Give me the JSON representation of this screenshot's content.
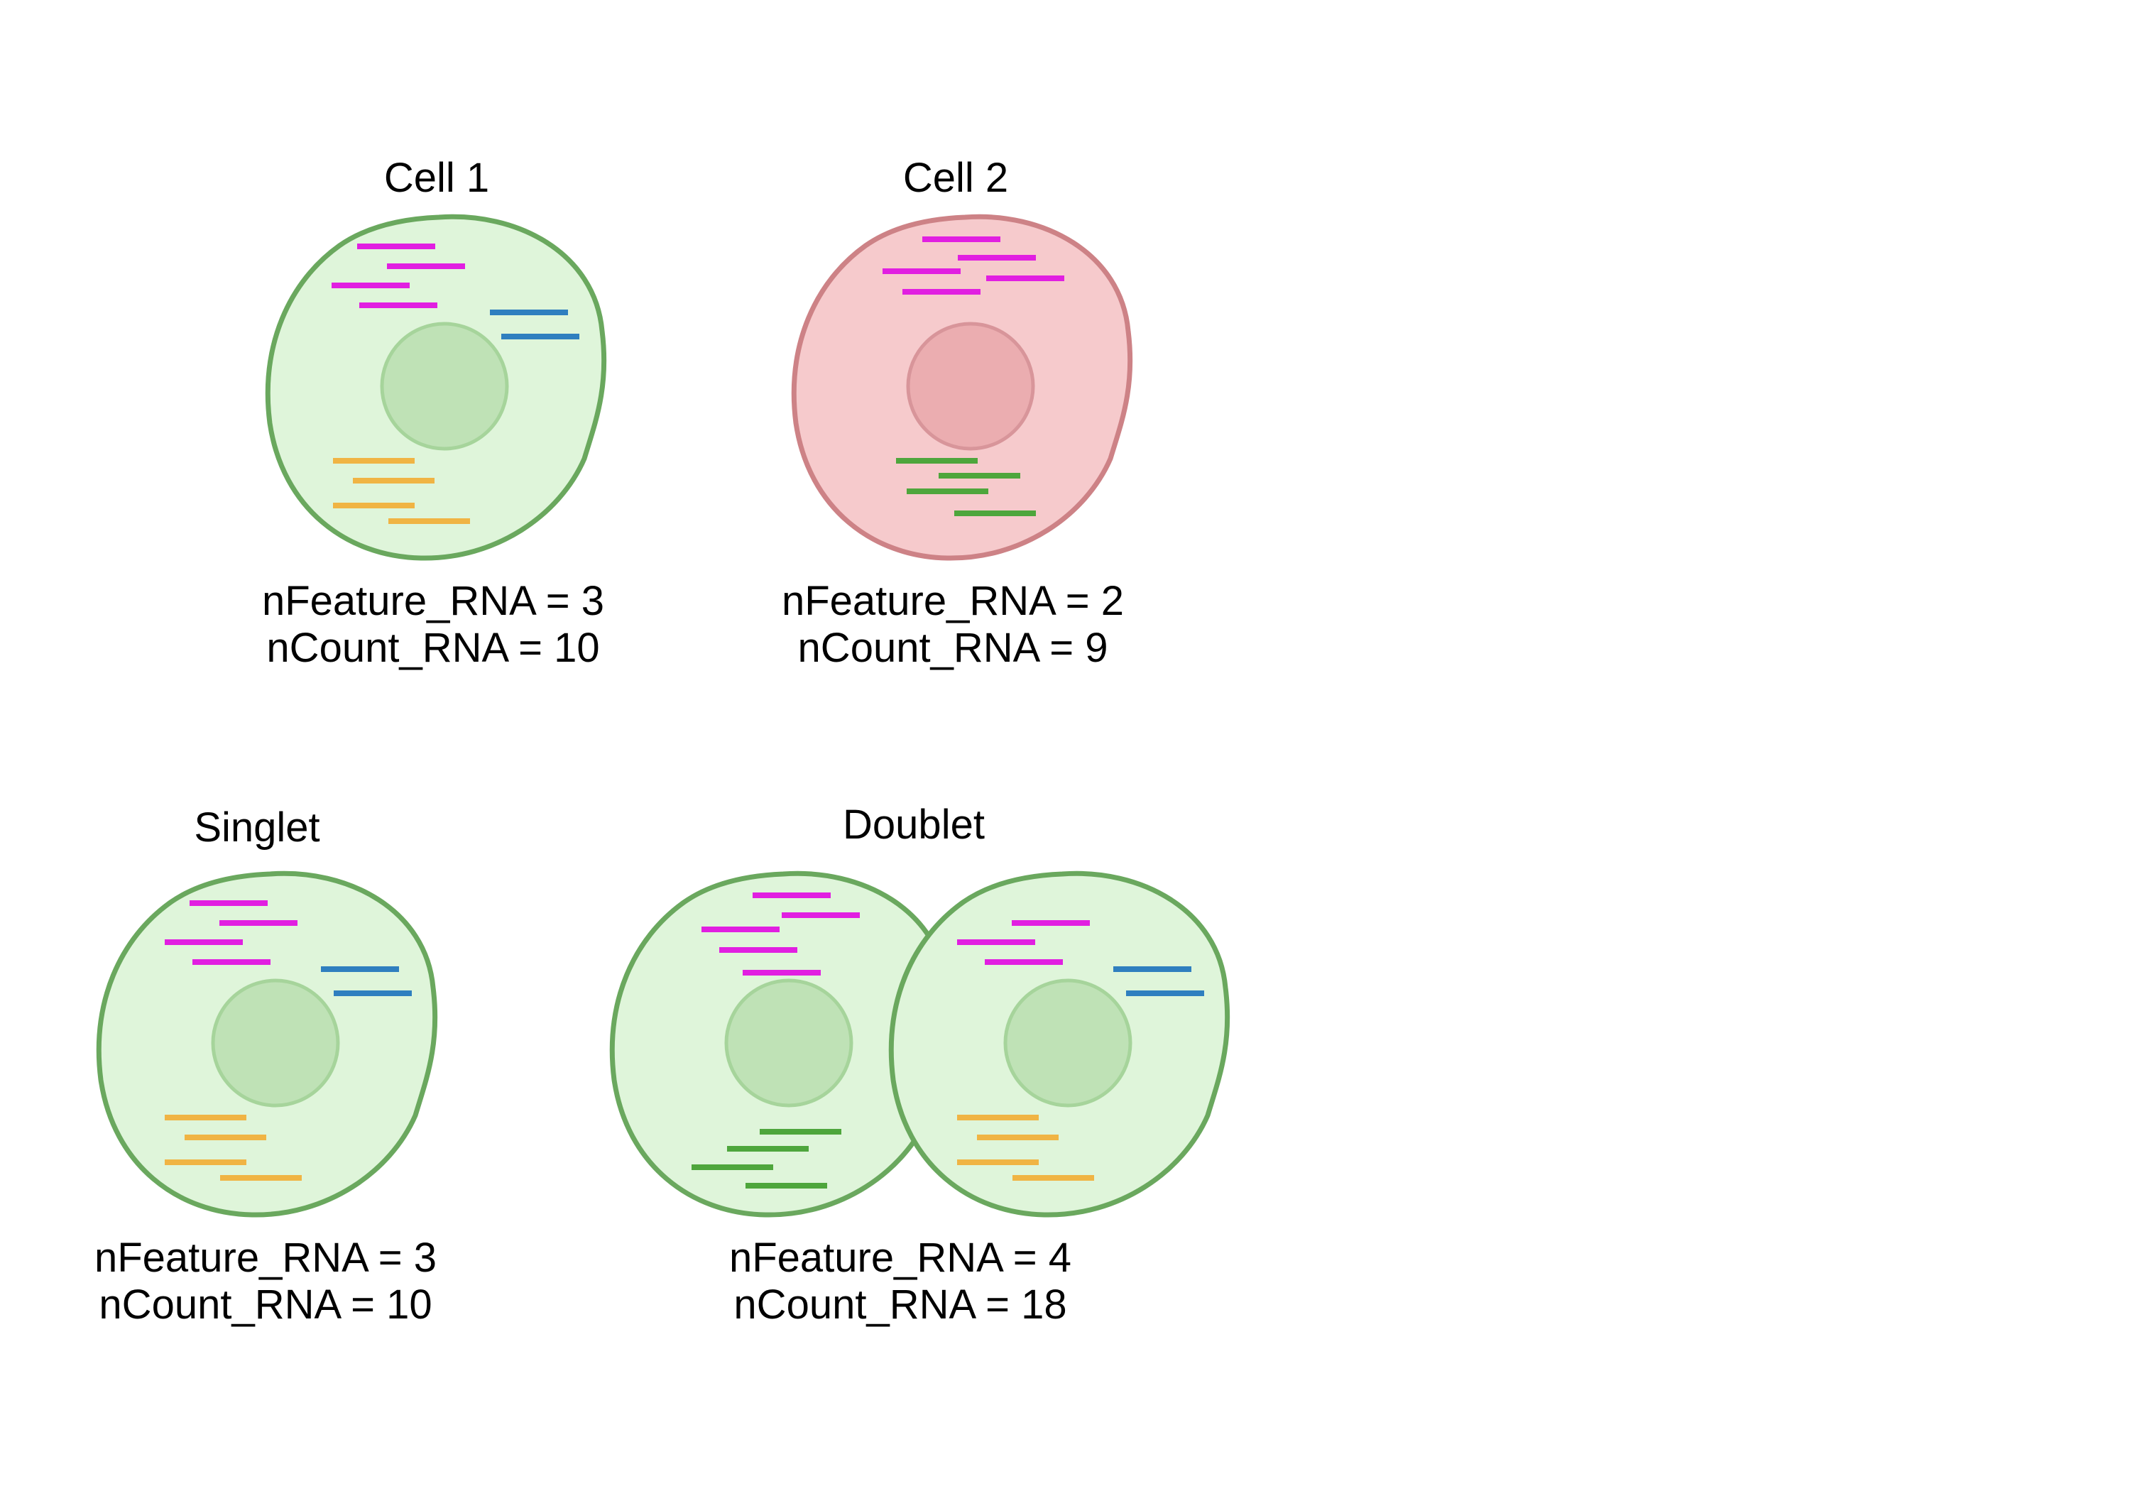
{
  "colors": {
    "healthy_fill": "#dff5da",
    "healthy_outline": "#6aa85e",
    "healthy_nucleus_fill": "#bfe2b6",
    "healthy_nucleus_outline": "#a6d49b",
    "diseased_fill": "#f6cacc",
    "diseased_outline": "#cd8286",
    "diseased_nucleus_fill": "#ebadb0",
    "diseased_nucleus_outline": "#d8959a",
    "transcript_magenta": "#e11fe1",
    "transcript_blue": "#2f7fbf",
    "transcript_orange": "#f0b444",
    "transcript_green": "#4ea63c",
    "text": "#000000"
  },
  "panels": [
    {
      "id": "cell1",
      "title": "Cell 1",
      "nfeature_text": "nFeature_RNA = 3",
      "ncount_text": "nCount_RNA = 10",
      "transcripts": {
        "magenta": 4,
        "blue": 2,
        "orange": 4
      }
    },
    {
      "id": "cell2",
      "title": "Cell 2",
      "nfeature_text": "nFeature_RNA = 2",
      "ncount_text": "nCount_RNA = 9",
      "transcripts": {
        "magenta": 5,
        "green": 4
      }
    },
    {
      "id": "singlet",
      "title": "Singlet",
      "nfeature_text": "nFeature_RNA = 3",
      "ncount_text": "nCount_RNA = 10",
      "transcripts": {
        "magenta": 4,
        "blue": 2,
        "orange": 4
      }
    },
    {
      "id": "doublet",
      "title": "Doublet",
      "nfeature_text": "nFeature_RNA = 4",
      "ncount_text": "nCount_RNA = 18",
      "transcripts": {
        "magenta": 8,
        "green": 4,
        "blue": 2,
        "orange": 4
      }
    }
  ]
}
